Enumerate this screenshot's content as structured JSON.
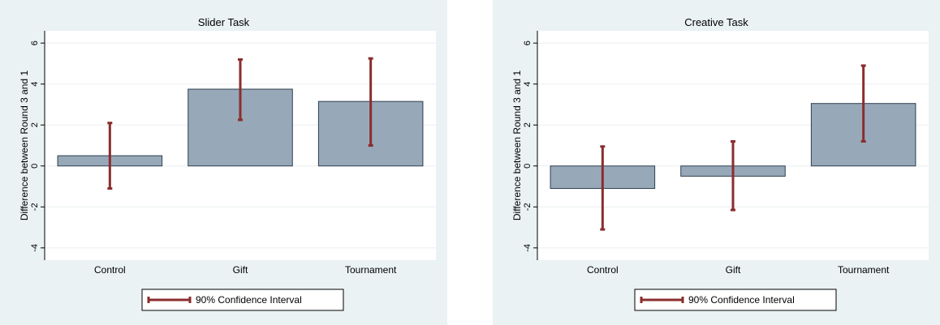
{
  "legend_label": "90% Confidence Interval",
  "colors": {
    "bar_fill": "#97a8b9",
    "bar_stroke": "#2f3f4f",
    "ci": "#8b2d2d",
    "plot_bg": "#ffffff",
    "panel_bg": "#eaf2f3",
    "grid": "#e8eef0"
  },
  "chart_data": [
    {
      "type": "bar",
      "title": "Slider Task",
      "ylabel": "Difference between Round 3 and 1",
      "xlabel": "",
      "categories": [
        "Control",
        "Gift",
        "Tournament"
      ],
      "values": [
        0.5,
        3.75,
        3.15
      ],
      "ci_low": [
        -1.1,
        2.25,
        1.0
      ],
      "ci_high": [
        2.1,
        5.2,
        5.25
      ],
      "ylim": [
        -4.6,
        6.6
      ],
      "yticks": [
        -4,
        -2,
        0,
        2,
        4,
        6
      ],
      "grid": true,
      "legend": {
        "position": "bottom",
        "entries": [
          "90% Confidence Interval"
        ]
      }
    },
    {
      "type": "bar",
      "title": "Creative Task",
      "ylabel": "Difference between Round 3 and 1",
      "xlabel": "",
      "categories": [
        "Control",
        "Gift",
        "Tournament"
      ],
      "values": [
        -1.1,
        -0.5,
        3.05
      ],
      "ci_low": [
        -3.1,
        -2.15,
        1.2
      ],
      "ci_high": [
        0.95,
        1.2,
        4.9
      ],
      "ylim": [
        -4.6,
        6.6
      ],
      "yticks": [
        -4,
        -2,
        0,
        2,
        4,
        6
      ],
      "grid": true,
      "legend": {
        "position": "bottom",
        "entries": [
          "90% Confidence Interval"
        ]
      }
    }
  ]
}
